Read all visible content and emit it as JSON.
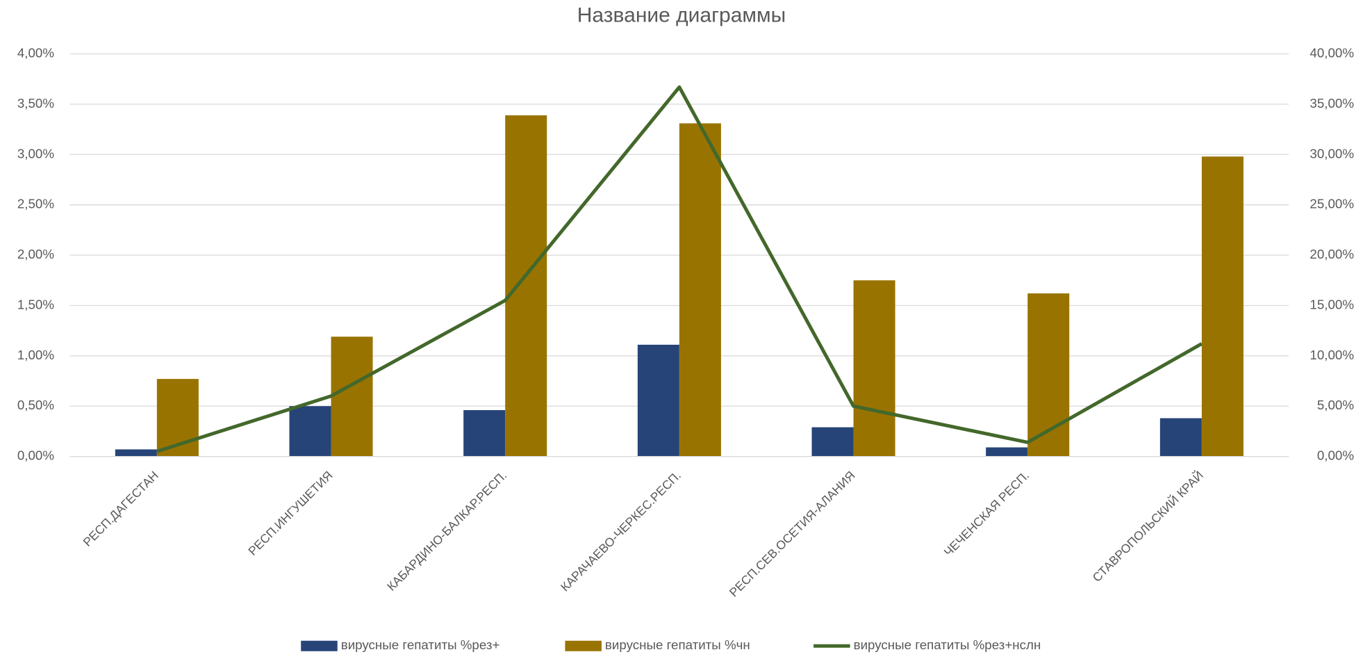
{
  "chart_data": {
    "type": "bar",
    "title": "Название диаграммы",
    "categories": [
      "РЕСП.ДАГЕСТАН",
      "РЕСП.ИНГУШЕТИЯ",
      "КАБАРДИНО-БАЛКАР.РЕСП.",
      "КАРАЧАЕВО-ЧЕРКЕС.РЕСП.",
      "РЕСП.СЕВ.ОСЕТИЯ-АЛАНИЯ",
      "ЧЕЧЕНСКАЯ РЕСП.",
      "СТАВРОПОЛЬСКИЙ КРАЙ"
    ],
    "series": [
      {
        "name": "вирусные гепатиты %рез+",
        "color": "#264478",
        "type": "bar",
        "values": [
          0.07,
          0.5,
          0.46,
          1.11,
          0.29,
          0.09,
          0.38
        ]
      },
      {
        "name": "вирусные гепатиты %чн",
        "color": "#997300",
        "type": "bar",
        "values": [
          0.77,
          1.19,
          3.39,
          3.31,
          1.75,
          1.62,
          2.98
        ]
      },
      {
        "name": "вирусные гепатиты %рез+нслн",
        "color": "#43682b",
        "type": "line",
        "axis": "y2",
        "values": [
          0.5,
          6.0,
          15.5,
          36.7,
          5.0,
          1.4,
          11.2
        ]
      }
    ],
    "ylim": [
      0,
      4
    ],
    "yticks": [
      {
        "value": 0,
        "label": "0,00%"
      },
      {
        "value": 0.5,
        "label": "0,50%"
      },
      {
        "value": 1,
        "label": "1,00%"
      },
      {
        "value": 1.5,
        "label": "1,50%"
      },
      {
        "value": 2,
        "label": "2,00%"
      },
      {
        "value": 2.5,
        "label": "2,50%"
      },
      {
        "value": 3,
        "label": "3,00%"
      },
      {
        "value": 3.5,
        "label": "3,50%"
      },
      {
        "value": 4,
        "label": "4,00%"
      }
    ],
    "y2lim": [
      0,
      40
    ],
    "y2ticks": [
      {
        "value": 0,
        "label": "0,00%"
      },
      {
        "value": 5,
        "label": "5,00%"
      },
      {
        "value": 10,
        "label": "10,00%"
      },
      {
        "value": 15,
        "label": "15,00%"
      },
      {
        "value": 20,
        "label": "20,00%"
      },
      {
        "value": 25,
        "label": "25,00%"
      },
      {
        "value": 30,
        "label": "30,00%"
      },
      {
        "value": 35,
        "label": "35,00%"
      },
      {
        "value": 40,
        "label": "40,00%"
      }
    ],
    "grid": true,
    "legend": "bottom"
  }
}
